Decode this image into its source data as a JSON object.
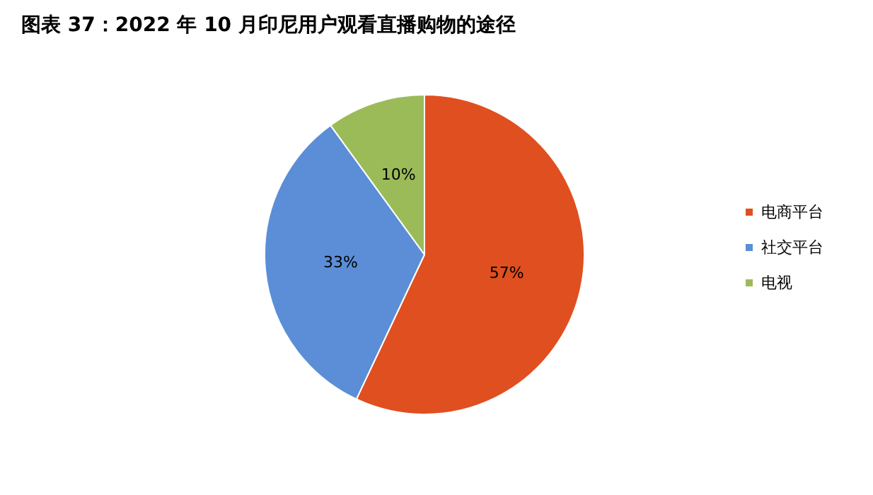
{
  "chart_data": {
    "type": "pie",
    "title": "图表 37：2022 年 10 月印尼用户观看直播购物的途径",
    "categories": [
      "电商平台",
      "社交平台",
      "电视"
    ],
    "values": [
      57,
      33,
      10
    ],
    "value_labels": [
      "57%",
      "33%",
      "10%"
    ],
    "colors": [
      "#e04f1f",
      "#5b8ed6",
      "#9bbb59"
    ],
    "legend": "right"
  }
}
